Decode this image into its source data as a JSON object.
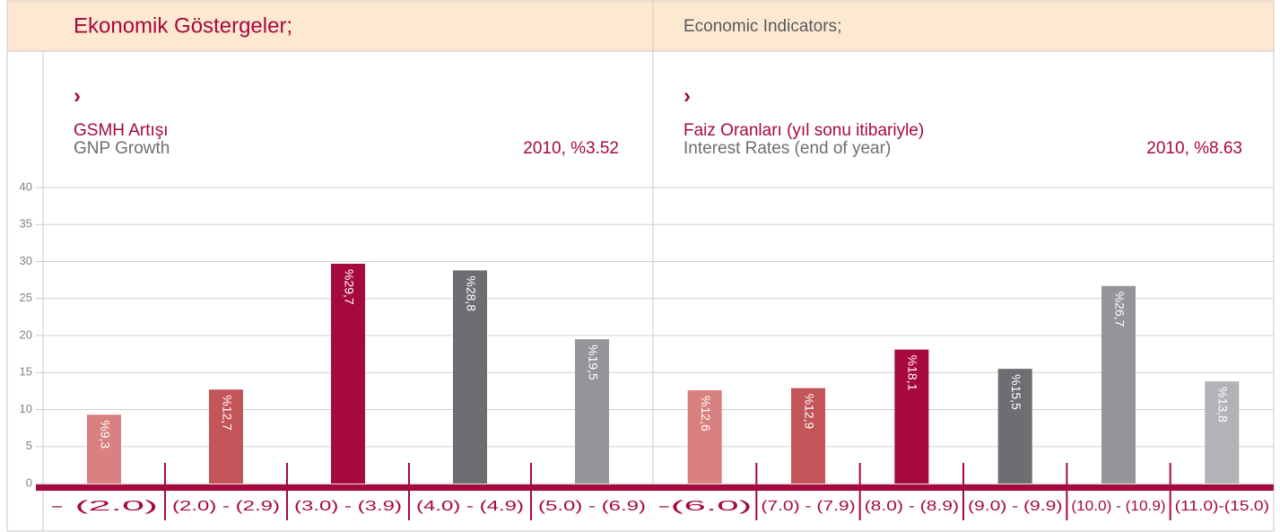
{
  "header": {
    "left": "Ekonomik Göstergeler;",
    "right": "Economic Indicators;"
  },
  "chart_data": [
    {
      "type": "bar",
      "title": "GSMH Artışı",
      "subtitle": "GNP Growth",
      "annotation": "2010, %3.52",
      "categories": [
        "- (2.0)",
        "(2.0) - (2.9)",
        "(3.0) - (3.9)",
        "(4.0) - (4.9)",
        "(5.0) - (6.9)"
      ],
      "values": [
        9.3,
        12.7,
        29.7,
        28.8,
        19.5
      ],
      "value_labels": [
        "%9,3",
        "%12,7",
        "%29,7",
        "%28,8",
        "%19,5"
      ],
      "colors": [
        "#d98080",
        "#c3555a",
        "#a6093d",
        "#6d6e71",
        "#939598"
      ],
      "ylim": [
        0,
        40
      ],
      "yticks": [
        0,
        5,
        10,
        15,
        20,
        25,
        30,
        35,
        40
      ],
      "grid": true
    },
    {
      "type": "bar",
      "title": "Faiz Oranları (yıl sonu itibariyle)",
      "subtitle": "Interest Rates (end of year)",
      "annotation": "2010, %8.63",
      "categories": [
        "-(6.0)",
        "(7.0) - (7.9)",
        "(8.0) - (8.9)",
        "(9.0) - (9.9)",
        "(10.0) - (10.9)",
        "(11.0)-(15.0)"
      ],
      "values": [
        12.6,
        12.9,
        18.1,
        15.5,
        26.7,
        13.8
      ],
      "value_labels": [
        "%12,6",
        "%12,9",
        "%18,1",
        "%15,5",
        "%26,7",
        "%13,8"
      ],
      "colors": [
        "#d98080",
        "#c3555a",
        "#a6093d",
        "#6d6e71",
        "#939598",
        "#b1b3b6"
      ],
      "ylim": [
        0,
        40
      ]
    }
  ]
}
